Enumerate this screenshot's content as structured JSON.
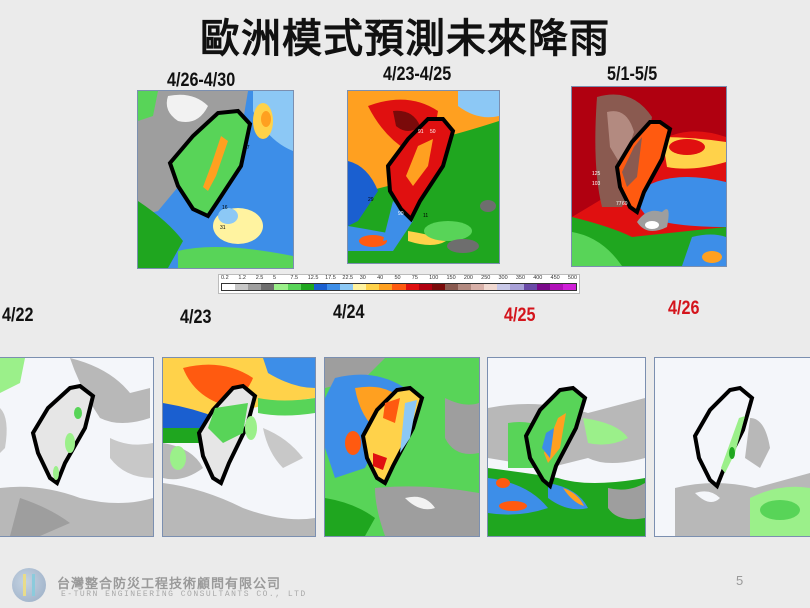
{
  "slide": {
    "title": "歐洲模式預測未來降雨",
    "page_number": "5"
  },
  "top_panels": [
    {
      "label": "4/26-4/30",
      "label_color": "#111111"
    },
    {
      "label": "4/23-4/25",
      "label_color": "#111111"
    },
    {
      "label": "5/1-5/5",
      "label_color": "#111111"
    }
  ],
  "bottom_panels": [
    {
      "label": "4/22",
      "label_color": "#111111"
    },
    {
      "label": "4/23",
      "label_color": "#111111"
    },
    {
      "label": "4/24",
      "label_color": "#111111"
    },
    {
      "label": "4/25",
      "label_color": "#d4141c"
    },
    {
      "label": "4/26",
      "label_color": "#d4141c"
    }
  ],
  "colorbar": {
    "ticks": [
      "0.2",
      "1.2",
      "2.5",
      "5",
      "7.5",
      "12.5",
      "17.5",
      "22.5",
      "30",
      "40",
      "50",
      "75",
      "100",
      "150",
      "200",
      "250",
      "300",
      "350",
      "400",
      "450",
      "500"
    ],
    "colors": [
      "#ffffff",
      "#c8c8c8",
      "#9e9e9e",
      "#6e6e6e",
      "#9bf08a",
      "#58d458",
      "#1fa61f",
      "#1a5fd0",
      "#3d8ee8",
      "#8cc8f5",
      "#fff3a0",
      "#ffd24a",
      "#ffa020",
      "#ff5a10",
      "#e01010",
      "#b00010",
      "#7a0a0a",
      "#8a5a50",
      "#b38a80",
      "#d8b0a8",
      "#f0d8d0",
      "#c8c8e8",
      "#a8a0d8",
      "#6a4aa8",
      "#7a0a8a",
      "#b010b8",
      "#d020d8"
    ]
  },
  "map_annotations": {
    "top_left": [
      "27",
      "16",
      "31"
    ],
    "top_middle": [
      "91",
      "50",
      "29",
      "90",
      "11"
    ],
    "top_right": [
      "125",
      "103",
      "77",
      "69"
    ],
    "bottom_labels": [
      "4/22 map",
      "4/23 map",
      "4/24 map",
      "4/25 map",
      "4/26 map"
    ]
  },
  "footer": {
    "company_cn": "台灣整合防災工程技術顧問有限公司",
    "company_en": "E-TURN ENGINEERING CONSULTANTS CO., LTD"
  }
}
